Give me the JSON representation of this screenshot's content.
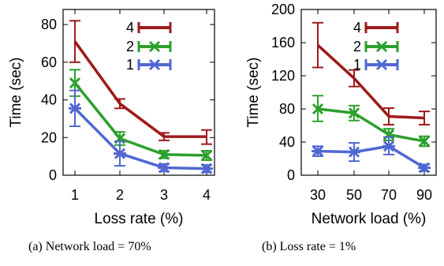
{
  "chart_data": [
    {
      "type": "line",
      "panel": "a",
      "caption": "(a)  Network load = 70%",
      "xlabel": "Loss rate (%)",
      "ylabel": "Time (sec)",
      "categories": [
        "1",
        "2",
        "3",
        "4"
      ],
      "yticks": [
        0,
        20,
        40,
        60,
        80
      ],
      "ylim": [
        0,
        88
      ],
      "grid": false,
      "legend_position": "top-right",
      "series": [
        {
          "name": "4",
          "color": "#9e1a1a",
          "marker": "tick",
          "values": [
            71,
            38,
            20.5,
            20.5
          ],
          "err_low": [
            60,
            35.5,
            18.5,
            16.5
          ],
          "err_high": [
            82,
            40.5,
            22.5,
            24
          ]
        },
        {
          "name": "2",
          "color": "#2ca02c",
          "marker": "x",
          "values": [
            49,
            19.5,
            11,
            10.5
          ],
          "err_low": [
            42,
            16,
            9,
            8
          ],
          "err_high": [
            56,
            23,
            13,
            13
          ]
        },
        {
          "name": "1",
          "color": "#5067d2",
          "marker": "star",
          "values": [
            35.5,
            11.5,
            4,
            3.5
          ],
          "err_low": [
            26,
            5,
            2,
            1.5
          ],
          "err_high": [
            45,
            18,
            6,
            5.5
          ]
        }
      ]
    },
    {
      "type": "line",
      "panel": "b",
      "caption": "(b)  Loss rate = 1%",
      "xlabel": "Network load (%)",
      "ylabel": "Time (sec)",
      "categories": [
        "30",
        "50",
        "70",
        "90"
      ],
      "yticks": [
        0,
        40,
        80,
        120,
        160,
        200
      ],
      "ylim": [
        0,
        200
      ],
      "grid": false,
      "legend_position": "top-right",
      "series": [
        {
          "name": "4",
          "color": "#9e1a1a",
          "marker": "tick",
          "values": [
            157,
            117,
            71,
            69
          ],
          "err_low": [
            130,
            107,
            61,
            61
          ],
          "err_high": [
            184,
            127,
            81,
            77
          ]
        },
        {
          "name": "2",
          "color": "#2ca02c",
          "marker": "x",
          "values": [
            80,
            75,
            49,
            41
          ],
          "err_low": [
            65,
            66,
            42,
            35
          ],
          "err_high": [
            96,
            84,
            56,
            47
          ]
        },
        {
          "name": "1",
          "color": "#5067d2",
          "marker": "star",
          "values": [
            29,
            28,
            35,
            9
          ],
          "err_low": [
            23,
            17,
            25,
            5
          ],
          "err_high": [
            35,
            39,
            46,
            13
          ]
        }
      ]
    }
  ]
}
